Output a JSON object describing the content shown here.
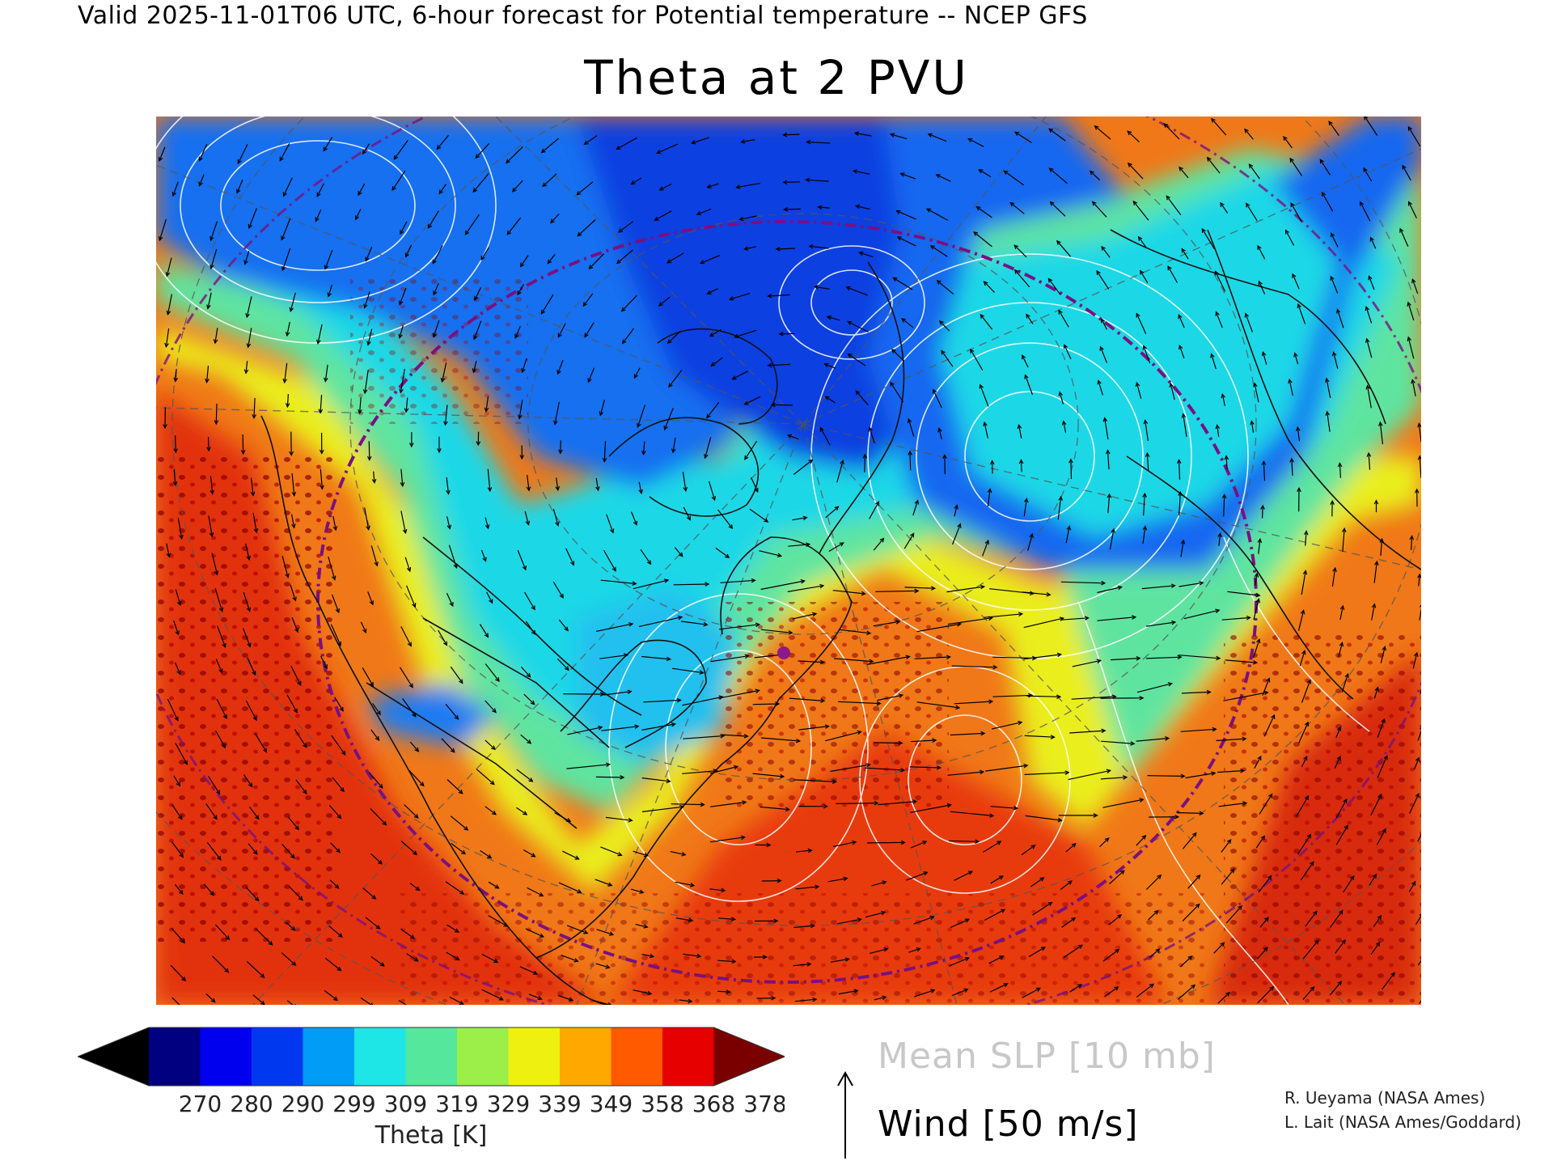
{
  "header": {
    "valid_line": "Valid 2025-11-01T06 UTC, 6-hour forecast for Potential temperature -- NCEP GFS",
    "title": "Theta at 2 PVU"
  },
  "map": {
    "background": "#f08a1c",
    "field_regions": [
      {
        "name": "polar-blue-core",
        "color": "#1240e0"
      },
      {
        "name": "arctic-blue",
        "color": "#1a6cf0"
      },
      {
        "name": "cyan-band",
        "color": "#1ed8e8"
      },
      {
        "name": "green-band",
        "color": "#5ce6a0"
      },
      {
        "name": "yellow-band",
        "color": "#e6f020"
      },
      {
        "name": "red-subtropics",
        "color": "#e02010"
      },
      {
        "name": "dark-red-cells",
        "color": "#8a0000"
      }
    ],
    "overlays": [
      "coastlines",
      "lat-lon-grid",
      "slp-isobars",
      "wind-vectors",
      "jet-circle"
    ]
  },
  "colorbar": {
    "colors": [
      "#000000",
      "#000080",
      "#0000ee",
      "#0038f0",
      "#009cf5",
      "#1ee6e6",
      "#55e89c",
      "#9cef48",
      "#eef010",
      "#ffa800",
      "#ff5a00",
      "#e60000",
      "#7a0000"
    ],
    "tick_labels": [
      "270",
      "280",
      "290",
      "299",
      "309",
      "319",
      "329",
      "339",
      "349",
      "358",
      "368",
      "378"
    ],
    "label": "Theta [K]"
  },
  "legend": {
    "slp": "Mean SLP [10 mb]",
    "wind": "Wind [50 m/s]"
  },
  "credits": [
    "R. Ueyama (NASA Ames)",
    "L. Lait (NASA Ames/Goddard)"
  ]
}
